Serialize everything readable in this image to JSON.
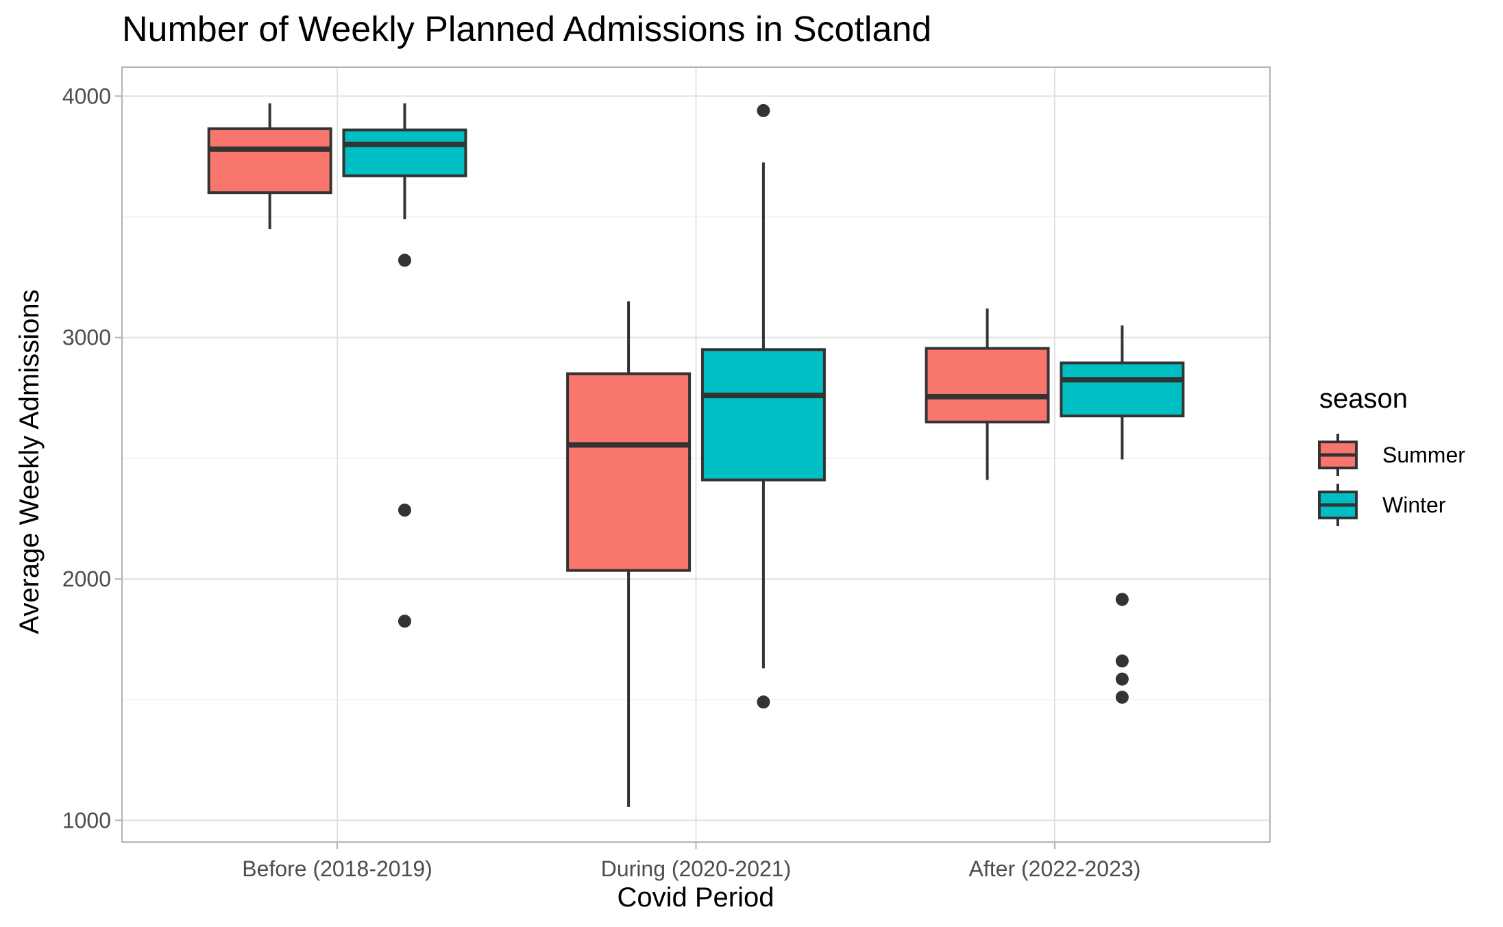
{
  "chart_data": {
    "type": "boxplot",
    "title": "Number of Weekly Planned Admissions in Scotland",
    "xlabel": "Covid Period",
    "ylabel": "Average Weekly Admissions",
    "categories": [
      "Before (2018-2019)",
      "During (2020-2021)",
      "After (2022-2023)"
    ],
    "ylim": [
      910,
      4120
    ],
    "yticks": [
      1000,
      2000,
      3000,
      4000
    ],
    "grid": true,
    "legend": {
      "title": "season",
      "placement": "right",
      "entries": [
        {
          "name": "Summer",
          "color": "#F8766D"
        },
        {
          "name": "Winter",
          "color": "#00BFC4"
        }
      ]
    },
    "series": [
      {
        "name": "Summer",
        "color": "#F8766D",
        "boxes": [
          {
            "category": "Before (2018-2019)",
            "whisker_low": 3450,
            "q1": 3600,
            "median": 3780,
            "q3": 3865,
            "whisker_high": 3970,
            "outliers": []
          },
          {
            "category": "During (2020-2021)",
            "whisker_low": 1055,
            "q1": 2035,
            "median": 2555,
            "q3": 2850,
            "whisker_high": 3150,
            "outliers": []
          },
          {
            "category": "After (2022-2023)",
            "whisker_low": 2410,
            "q1": 2650,
            "median": 2755,
            "q3": 2955,
            "whisker_high": 3120,
            "outliers": []
          }
        ]
      },
      {
        "name": "Winter",
        "color": "#00BFC4",
        "boxes": [
          {
            "category": "Before (2018-2019)",
            "whisker_low": 3490,
            "q1": 3670,
            "median": 3800,
            "q3": 3860,
            "whisker_high": 3970,
            "outliers": [
              3320,
              2285,
              1825
            ]
          },
          {
            "category": "During (2020-2021)",
            "whisker_low": 1630,
            "q1": 2410,
            "median": 2760,
            "q3": 2950,
            "whisker_high": 3725,
            "outliers": [
              3940,
              1490
            ]
          },
          {
            "category": "After (2022-2023)",
            "whisker_low": 2495,
            "q1": 2675,
            "median": 2825,
            "q3": 2895,
            "whisker_high": 3050,
            "outliers": [
              1915,
              1660,
              1585,
              1510
            ]
          }
        ]
      }
    ]
  }
}
